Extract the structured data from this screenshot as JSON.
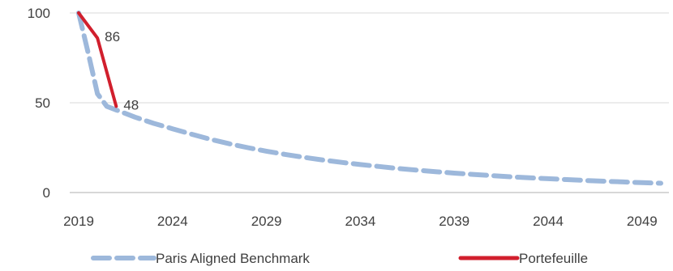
{
  "chart_data": {
    "type": "line",
    "x": [
      2019,
      2020,
      2021,
      2022,
      2023,
      2024,
      2025,
      2026,
      2027,
      2028,
      2029,
      2030,
      2031,
      2032,
      2033,
      2034,
      2035,
      2036,
      2037,
      2038,
      2039,
      2040,
      2041,
      2042,
      2043,
      2044,
      2045,
      2046,
      2047,
      2048,
      2049,
      2050
    ],
    "x_ticks": [
      "2019",
      "2024",
      "2029",
      "2034",
      "2039",
      "2044",
      "2049"
    ],
    "y_ticks": [
      "0",
      "50",
      "100"
    ],
    "ylim": [
      0,
      100
    ],
    "xlim": [
      2019,
      2050
    ],
    "grid": "horizontal",
    "legend_position": "bottom",
    "series": [
      {
        "name": "Paris Aligned Benchmark",
        "color": "#9DB8DB",
        "style": "dashed",
        "points": [
          [
            2019,
            100
          ],
          [
            2019.5,
            78
          ],
          [
            2020,
            55
          ],
          [
            2020.5,
            48
          ],
          [
            2021,
            46
          ],
          [
            2022,
            42
          ],
          [
            2023,
            38.5
          ],
          [
            2024,
            35.5
          ],
          [
            2025,
            32.5
          ],
          [
            2026,
            29.7
          ],
          [
            2027,
            27.2
          ],
          [
            2028,
            25
          ],
          [
            2029,
            23
          ],
          [
            2030,
            21.2
          ],
          [
            2031,
            19.6
          ],
          [
            2032,
            18.1
          ],
          [
            2033,
            16.8
          ],
          [
            2034,
            15.6
          ],
          [
            2035,
            14.5
          ],
          [
            2036,
            13.4
          ],
          [
            2037,
            12.5
          ],
          [
            2038,
            11.6
          ],
          [
            2039,
            10.8
          ],
          [
            2040,
            10.1
          ],
          [
            2041,
            9.4
          ],
          [
            2042,
            8.8
          ],
          [
            2043,
            8.2
          ],
          [
            2044,
            7.7
          ],
          [
            2045,
            7.2
          ],
          [
            2046,
            6.7
          ],
          [
            2047,
            6.3
          ],
          [
            2048,
            5.9
          ],
          [
            2049,
            5.5
          ],
          [
            2050,
            5.2
          ]
        ]
      },
      {
        "name": "Portefeuille",
        "color": "#D11F2D",
        "style": "solid",
        "points": [
          [
            2019,
            100
          ],
          [
            2020,
            86
          ],
          [
            2021,
            48
          ]
        ]
      }
    ],
    "data_labels": [
      {
        "series": "Portefeuille",
        "x": 2020,
        "y": 86,
        "text": "86"
      },
      {
        "series": "Portefeuille",
        "x": 2021,
        "y": 48,
        "text": "48"
      }
    ]
  }
}
